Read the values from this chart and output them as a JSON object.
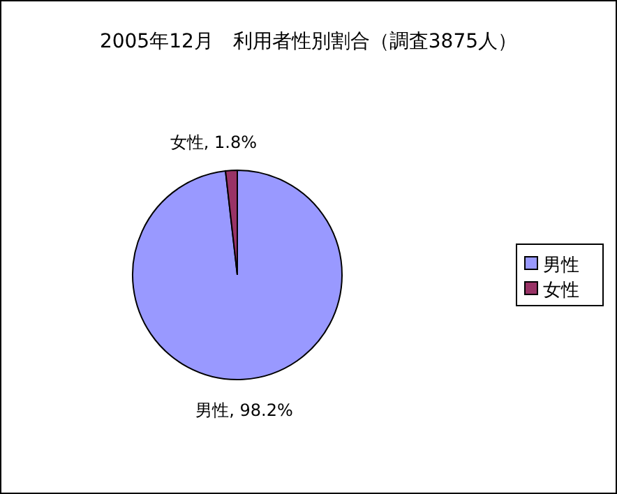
{
  "chart_data": {
    "type": "pie",
    "title": "2005年12月　利用者性別割合（調査3875人）",
    "categories": [
      "男性",
      "女性"
    ],
    "values": [
      98.2,
      1.8
    ],
    "colors": [
      "#9999ff",
      "#993366"
    ],
    "value_labels": [
      "男性, 98.2%",
      "女性, 1.8%"
    ],
    "legend": "right"
  }
}
